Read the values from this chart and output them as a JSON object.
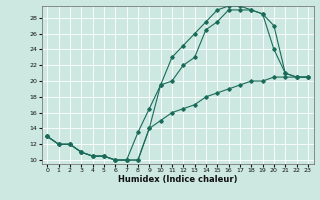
{
  "title": "",
  "xlabel": "Humidex (Indice chaleur)",
  "bg_color": "#cce8e0",
  "line_color": "#1a6b5a",
  "grid_color": "#ffffff",
  "xlim": [
    -0.5,
    23.5
  ],
  "ylim": [
    9.5,
    29.5
  ],
  "xticks": [
    0,
    1,
    2,
    3,
    4,
    5,
    6,
    7,
    8,
    9,
    10,
    11,
    12,
    13,
    14,
    15,
    16,
    17,
    18,
    19,
    20,
    21,
    22,
    23
  ],
  "yticks": [
    10,
    12,
    14,
    16,
    18,
    20,
    22,
    24,
    26,
    28
  ],
  "line1": {
    "x": [
      0,
      1,
      2,
      3,
      4,
      5,
      6,
      7,
      8,
      9,
      10,
      11,
      12,
      13,
      14,
      15,
      16,
      17,
      18,
      19,
      20,
      21,
      22,
      23
    ],
    "y": [
      13,
      12,
      12,
      11,
      10.5,
      10.5,
      10,
      10,
      13.5,
      16.5,
      19.5,
      20,
      22,
      23,
      26.5,
      27.5,
      29,
      29,
      29,
      28.5,
      27,
      21,
      20.5,
      20.5
    ]
  },
  "line2": {
    "x": [
      0,
      1,
      2,
      3,
      4,
      5,
      6,
      7,
      8,
      9,
      10,
      11,
      12,
      13,
      14,
      15,
      16,
      17,
      18,
      19,
      20,
      21,
      22,
      23
    ],
    "y": [
      13,
      12,
      12,
      11,
      10.5,
      10.5,
      10,
      10,
      10,
      14,
      19.5,
      23,
      24.5,
      26,
      27.5,
      29,
      29.5,
      29.5,
      29,
      28.5,
      24,
      21,
      20.5,
      20.5
    ]
  },
  "line3": {
    "x": [
      0,
      1,
      2,
      3,
      4,
      5,
      6,
      7,
      8,
      9,
      10,
      11,
      12,
      13,
      14,
      15,
      16,
      17,
      18,
      19,
      20,
      21,
      22,
      23
    ],
    "y": [
      13,
      12,
      12,
      11,
      10.5,
      10.5,
      10,
      10,
      10,
      14,
      15,
      16,
      16.5,
      17,
      18,
      18.5,
      19,
      19.5,
      20,
      20,
      20.5,
      20.5,
      20.5,
      20.5
    ]
  }
}
